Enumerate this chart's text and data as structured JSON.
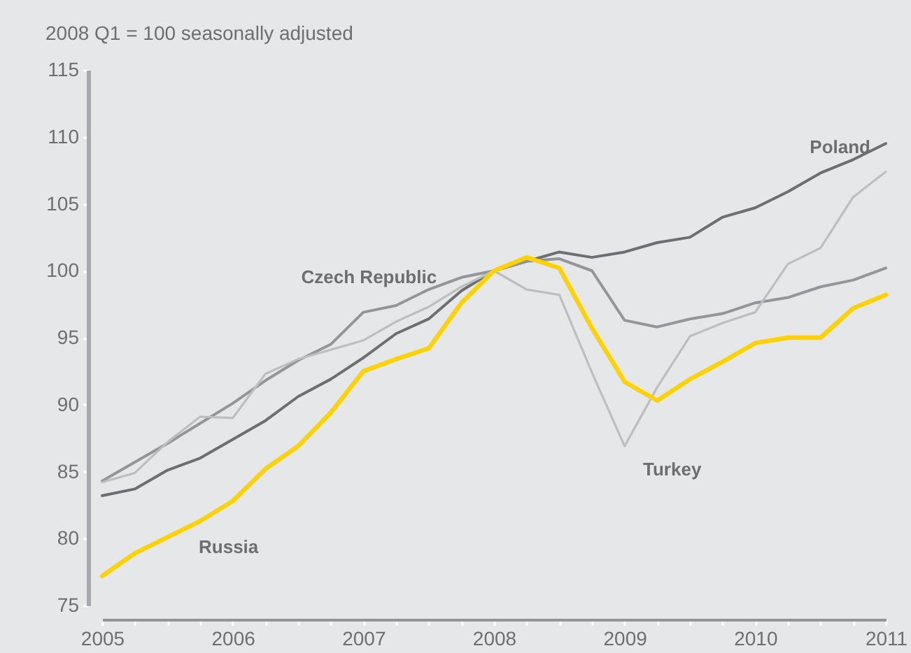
{
  "chart_data": {
    "type": "line",
    "ylabel": "2008 Q1 = 100 seasonally adjusted",
    "x": [
      2005,
      2005.25,
      2005.5,
      2005.75,
      2006,
      2006.25,
      2006.5,
      2006.75,
      2007,
      2007.25,
      2007.5,
      2007.75,
      2008,
      2008.25,
      2008.5,
      2008.75,
      2009,
      2009.25,
      2009.5,
      2009.75,
      2010,
      2010.25,
      2010.5,
      2010.75,
      2011
    ],
    "series": [
      {
        "name": "Poland",
        "color": "#6d6e71",
        "values": [
          83.2,
          83.7,
          85.1,
          86.0,
          87.4,
          88.8,
          90.6,
          91.9,
          93.5,
          95.3,
          96.4,
          98.5,
          100,
          100.7,
          101.4,
          101.0,
          101.4,
          102.1,
          102.5,
          104.0,
          104.7,
          105.9,
          107.3,
          108.3,
          109.5
        ]
      },
      {
        "name": "Czech Republic",
        "color": "#939598",
        "values": [
          84.3,
          85.7,
          87.1,
          88.6,
          90.1,
          91.8,
          93.3,
          94.5,
          96.9,
          97.4,
          98.6,
          99.5,
          100,
          100.7,
          100.9,
          100.0,
          96.3,
          95.8,
          96.4,
          96.8,
          97.6,
          98.0,
          98.8,
          99.3,
          100.2
        ]
      },
      {
        "name": "Turkey",
        "color": "#bcbec0",
        "values": [
          84.2,
          84.9,
          87.2,
          89.1,
          89.0,
          92.3,
          93.4,
          94.1,
          94.8,
          96.2,
          97.3,
          98.8,
          100,
          98.6,
          98.2,
          92.4,
          86.9,
          91.3,
          95.1,
          96.1,
          96.9,
          100.5,
          101.7,
          105.5,
          107.4
        ]
      },
      {
        "name": "Russia",
        "color": "#ffd200",
        "values": [
          77.2,
          78.9,
          80.1,
          81.3,
          82.8,
          85.2,
          86.9,
          89.4,
          92.5,
          93.4,
          94.2,
          97.6,
          100,
          101.0,
          100.2,
          95.7,
          91.7,
          90.3,
          91.9,
          93.2,
          94.6,
          95.0,
          95.0,
          97.2,
          98.2
        ]
      }
    ],
    "xlim": [
      2005,
      2011
    ],
    "xticks": [
      2005,
      {
        "value": 2005.25,
        "label": null
      },
      {
        "value": 2005.5,
        "label": null
      },
      {
        "value": 2005.75,
        "label": null
      },
      2006,
      {
        "value": 2006.25,
        "label": null
      },
      {
        "value": 2006.5,
        "label": null
      },
      {
        "value": 2006.75,
        "label": null
      },
      2007,
      {
        "value": 2007.25,
        "label": null
      },
      {
        "value": 2007.5,
        "label": null
      },
      {
        "value": 2007.75,
        "label": null
      },
      2008,
      {
        "value": 2008.25,
        "label": null
      },
      {
        "value": 2008.5,
        "label": null
      },
      {
        "value": 2008.75,
        "label": null
      },
      2009,
      {
        "value": 2009.25,
        "label": null
      },
      {
        "value": 2009.5,
        "label": null
      },
      {
        "value": 2009.75,
        "label": null
      },
      2010,
      {
        "value": 2010.25,
        "label": null
      },
      {
        "value": 2010.5,
        "label": null
      },
      {
        "value": 2010.75,
        "label": null
      },
      2011
    ],
    "ylim": [
      75,
      115
    ],
    "yticks": [
      75,
      80,
      85,
      90,
      95,
      100,
      105,
      110,
      115
    ],
    "grid": false
  }
}
